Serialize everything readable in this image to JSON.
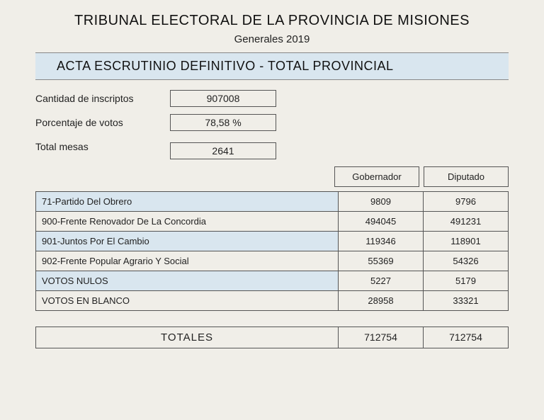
{
  "header": {
    "main": "TRIBUNAL ELECTORAL DE LA PROVINCIA DE MISIONES",
    "sub": "Generales 2019",
    "band": "ACTA ESCRUTINIO DEFINITIVO - TOTAL PROVINCIAL"
  },
  "summary": {
    "inscriptos_label": "Cantidad de inscriptos",
    "inscriptos_value": "907008",
    "porcentaje_label": "Porcentaje de votos",
    "porcentaje_value": "78,58 %",
    "mesas_label": "Total mesas",
    "mesas_value": "2641"
  },
  "columns": {
    "c1": "Gobernador",
    "c2": "Diputado"
  },
  "rows": [
    {
      "party": "71-Partido Del Obrero",
      "gob": "9809",
      "dip": "9796",
      "alt": true
    },
    {
      "party": "900-Frente Renovador De La Concordia",
      "gob": "494045",
      "dip": "491231",
      "alt": false
    },
    {
      "party": "901-Juntos Por El Cambio",
      "gob": "119346",
      "dip": "118901",
      "alt": true
    },
    {
      "party": "902-Frente Popular Agrario Y Social",
      "gob": "55369",
      "dip": "54326",
      "alt": false
    },
    {
      "party": "VOTOS NULOS",
      "gob": "5227",
      "dip": "5179",
      "alt": true
    },
    {
      "party": "VOTOS EN BLANCO",
      "gob": "28958",
      "dip": "33321",
      "alt": false
    }
  ],
  "totals": {
    "label": "TOTALES",
    "gob": "712754",
    "dip": "712754"
  }
}
